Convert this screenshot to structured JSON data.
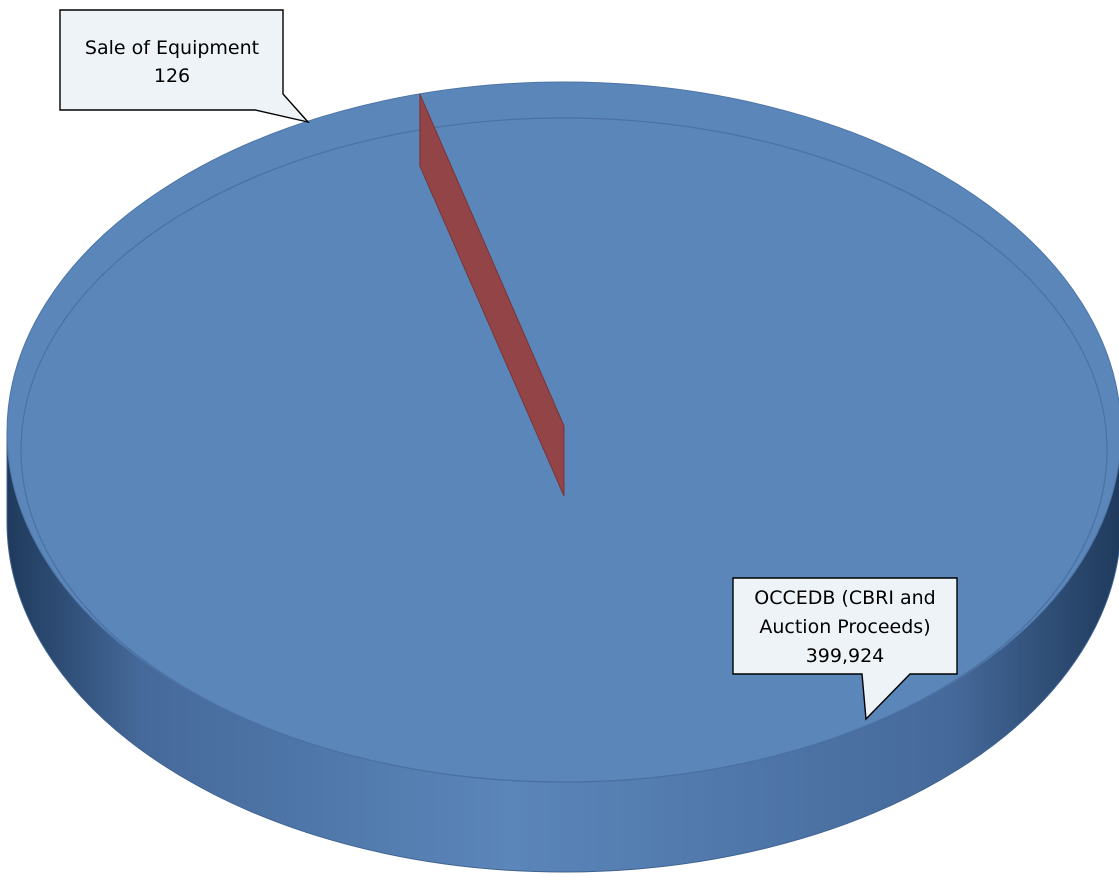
{
  "chart_data": {
    "type": "pie",
    "title": "",
    "slices": [
      {
        "label_lines": [
          "OCCEDB (CBRI and",
          "Auction Proceeds)"
        ],
        "value": 399924,
        "value_label": "399,924",
        "color": "#5b86ba"
      },
      {
        "label_lines": [
          "Sale of Equipment"
        ],
        "value": 126,
        "value_label": "126",
        "color": "#924446"
      }
    ],
    "legend": "none",
    "style": "3d"
  }
}
